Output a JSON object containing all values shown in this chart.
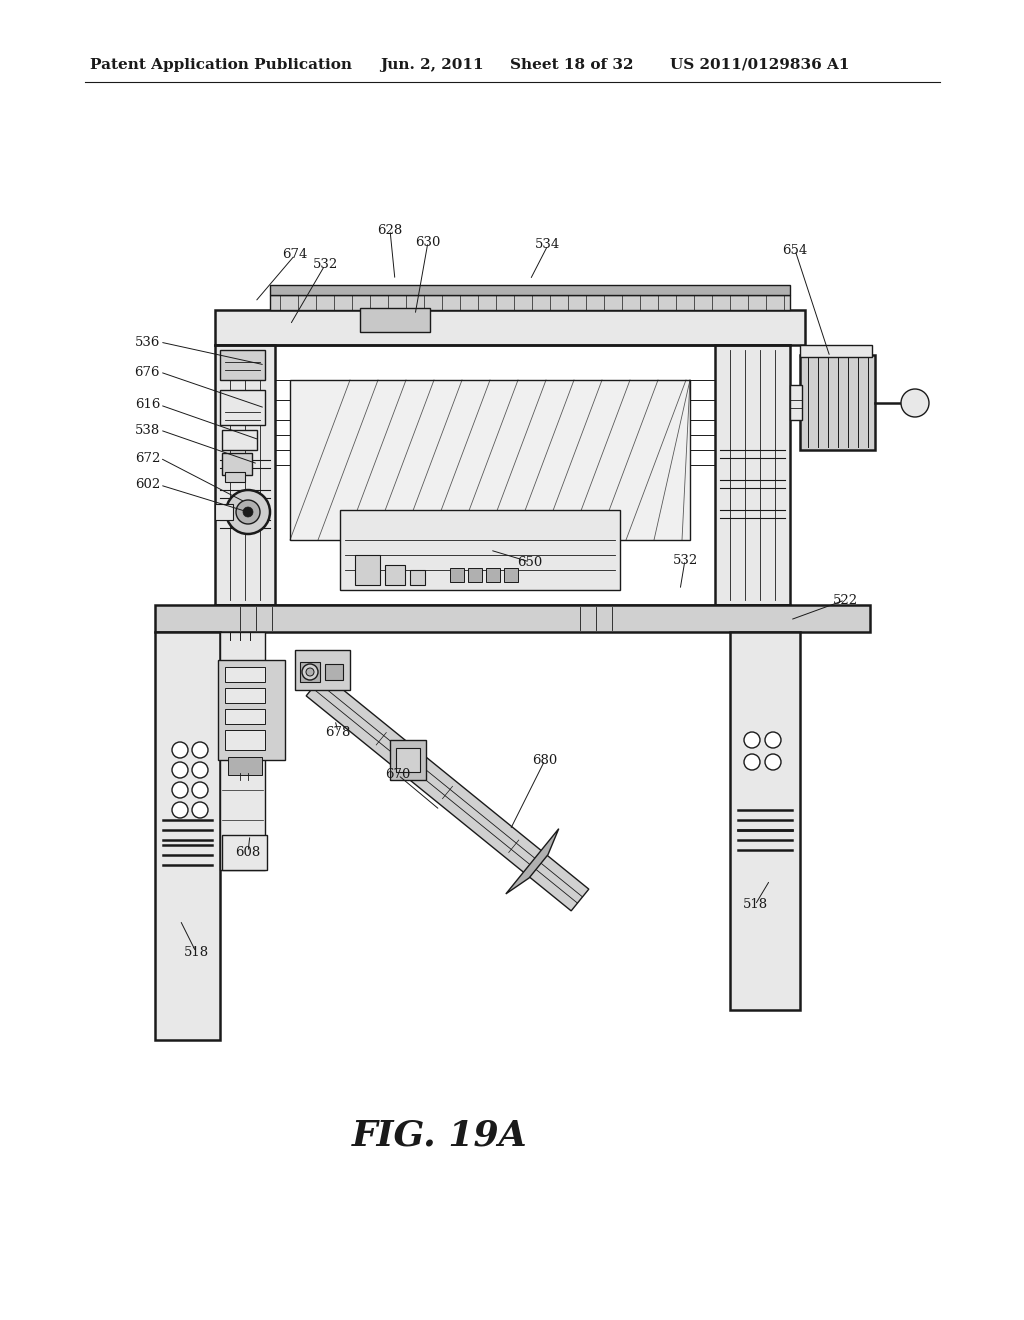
{
  "background_color": "#ffffff",
  "header_text": "Patent Application Publication",
  "header_date": "Jun. 2, 2011",
  "header_sheet": "Sheet 18 of 32",
  "header_patent": "US 2011/0129836 A1",
  "figure_label": "FIG. 19A",
  "black": "#1a1a1a",
  "gray_light": "#e8e8e8",
  "gray_med": "#d0d0d0",
  "gray_dark": "#b0b0b0"
}
